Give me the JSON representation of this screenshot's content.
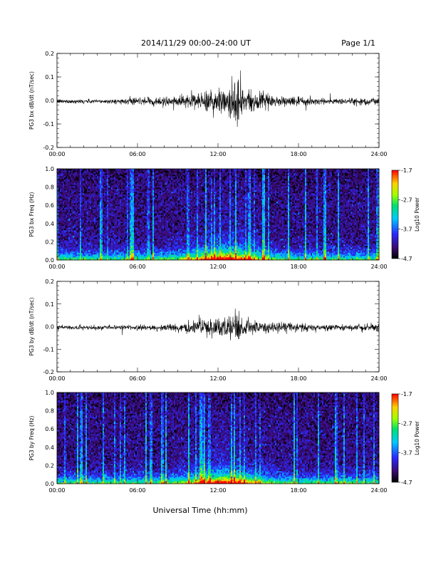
{
  "header": {
    "title": "2014/11/29   00:00–24:00 UT",
    "page": "Page 1/1"
  },
  "xaxis_label": "Universal Time (hh:mm)",
  "colorbar": {
    "ticks": [
      "-1.7",
      "-2.7",
      "-3.7",
      "-4.7"
    ],
    "label": "Log10 Power"
  },
  "chart_data": [
    {
      "type": "line",
      "ylabel": "PG3 bx dB/dt (nT/sec)",
      "x_ticks": [
        "00:00",
        "06:00",
        "12:00",
        "18:00",
        "24:00"
      ],
      "y_ticks": [
        "0.2",
        "0.1",
        "0.0",
        "-0.1",
        "-0.2"
      ],
      "xlim": [
        0,
        24
      ],
      "ylim": [
        -0.2,
        0.2
      ],
      "description_points": {
        "x_hours": [
          0,
          2,
          4,
          6,
          8,
          10,
          11,
          12,
          13,
          13.5,
          14,
          16,
          18,
          20,
          22,
          24
        ],
        "envelope": [
          0.01,
          0.01,
          0.01,
          0.015,
          0.02,
          0.03,
          0.05,
          0.06,
          0.08,
          0.13,
          0.04,
          0.03,
          0.02,
          0.015,
          0.015,
          0.02
        ]
      }
    },
    {
      "type": "heatmap",
      "ylabel": "PG3 bx Freq (Hz)",
      "x_ticks": [
        "00:00",
        "06:00",
        "12:00",
        "18:00",
        "24:00"
      ],
      "y_ticks": [
        "1.0",
        "0.8",
        "0.6",
        "0.4",
        "0.2",
        "0.0"
      ],
      "xlim": [
        0,
        24
      ],
      "ylim": [
        0,
        1
      ],
      "color_range": [
        -4.7,
        -1.7
      ]
    },
    {
      "type": "line",
      "ylabel": "PG3 by dB/dt (nT/sec)",
      "x_ticks": [
        "00:00",
        "06:00",
        "12:00",
        "18:00",
        "24:00"
      ],
      "y_ticks": [
        "0.2",
        "0.1",
        "0.0",
        "-0.1",
        "-0.2"
      ],
      "xlim": [
        0,
        24
      ],
      "ylim": [
        -0.2,
        0.2
      ],
      "description_points": {
        "x_hours": [
          0,
          2,
          4,
          6,
          8,
          10,
          11,
          12,
          13,
          13.5,
          14,
          16,
          18,
          20,
          22,
          24
        ],
        "envelope": [
          0.01,
          0.01,
          0.01,
          0.012,
          0.015,
          0.025,
          0.04,
          0.05,
          0.06,
          0.1,
          0.04,
          0.025,
          0.02,
          0.015,
          0.015,
          0.02
        ]
      }
    },
    {
      "type": "heatmap",
      "ylabel": "PG3 by Freq (Hz)",
      "x_ticks": [
        "00:00",
        "06:00",
        "12:00",
        "18:00",
        "24:00"
      ],
      "y_ticks": [
        "1.0",
        "0.8",
        "0.6",
        "0.4",
        "0.2",
        "0.0"
      ],
      "xlim": [
        0,
        24
      ],
      "ylim": [
        0,
        1
      ],
      "color_range": [
        -4.7,
        -1.7
      ]
    }
  ]
}
